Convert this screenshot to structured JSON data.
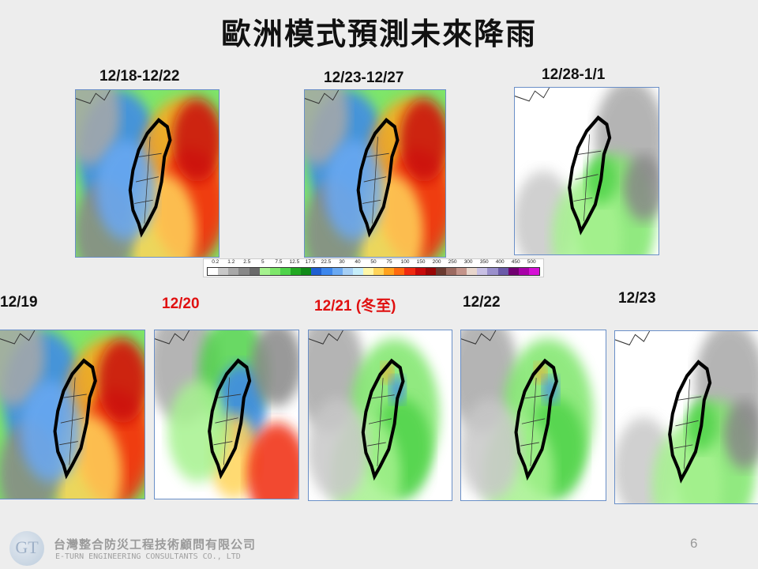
{
  "slide": {
    "title": "歐洲模式預測未來降雨",
    "page_number": "6"
  },
  "top_maps": [
    {
      "label": "12/18-12/22",
      "label_color": "#111111",
      "palette": "heavy"
    },
    {
      "label": "12/23-12/27",
      "label_color": "#111111",
      "palette": "heavy"
    },
    {
      "label": "12/28-1/1",
      "label_color": "#111111",
      "palette": "light"
    }
  ],
  "bottom_maps": [
    {
      "label": "12/19",
      "label_color": "#111111",
      "palette": "heavy"
    },
    {
      "label": "12/20",
      "label_color": "#e01010",
      "palette": "mixed"
    },
    {
      "label": "12/21 (冬至)",
      "label_color": "#e01010",
      "palette": "green"
    },
    {
      "label": "12/22",
      "label_color": "#111111",
      "palette": "green"
    },
    {
      "label": "12/23",
      "label_color": "#111111",
      "palette": "light"
    }
  ],
  "colorbar": {
    "ticks": [
      "0.2",
      "1.2",
      "2.5",
      "5",
      "7.5",
      "12.5",
      "17.5",
      "22.5",
      "30",
      "40",
      "50",
      "75",
      "100",
      "150",
      "200",
      "250",
      "300",
      "350",
      "400",
      "450",
      "500"
    ],
    "colors": [
      "#ffffff",
      "#c8c8c8",
      "#a8a8a8",
      "#888888",
      "#6a6a6a",
      "#a6f28f",
      "#7ee66a",
      "#4fd34a",
      "#21a821",
      "#108a18",
      "#1f5fd0",
      "#3c86ec",
      "#6aa9f2",
      "#a6cff5",
      "#c6eefa",
      "#fff7a8",
      "#ffd45a",
      "#ffa21e",
      "#ff6a0e",
      "#f02a10",
      "#c80a0a",
      "#9a0606",
      "#6b3a30",
      "#9c6a60",
      "#c4948a",
      "#e8d6cc",
      "#c8c0e4",
      "#9a90cc",
      "#6a5aa8",
      "#700070",
      "#a800a8",
      "#d610d6"
    ]
  },
  "footer": {
    "company_zh": "台灣整合防災工程技術顧問有限公司",
    "company_en": "E-TURN ENGINEERING CONSULTANTS CO., LTD",
    "logo_text": "GT"
  }
}
